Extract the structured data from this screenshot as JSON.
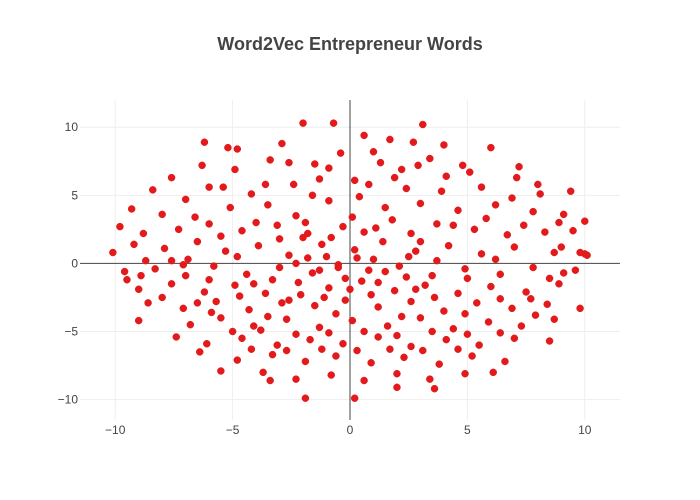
{
  "colors": {
    "marker": "#e31a1c",
    "zero_line": "#444444",
    "grid": "#eeeeee",
    "text": "#444444"
  },
  "chart_data": {
    "type": "scatter",
    "title": "Word2Vec Entrepreneur Words",
    "xlabel": "",
    "ylabel": "",
    "xlim": [
      -11.5,
      11.5
    ],
    "ylim": [
      -11.5,
      12
    ],
    "xticks": [
      -10,
      -5,
      0,
      5,
      10
    ],
    "yticks": [
      -10,
      -5,
      0,
      5,
      10
    ],
    "xtick_labels": [
      "−10",
      "−5",
      "0",
      "5",
      "10"
    ],
    "ytick_labels": [
      "−10",
      "−5",
      "0",
      "5",
      "10"
    ],
    "grid": true,
    "zero_lines": true,
    "legend": "none",
    "marker_color": "#e31a1c",
    "series": [
      {
        "points": [
          [
            -2.0,
            10.3
          ],
          [
            -0.7,
            10.3
          ],
          [
            3.1,
            10.2
          ],
          [
            1.7,
            9.1
          ],
          [
            0.6,
            9.4
          ],
          [
            -5.2,
            8.5
          ],
          [
            -6.2,
            8.9
          ],
          [
            -2.9,
            8.8
          ],
          [
            -4.8,
            8.4
          ],
          [
            6.0,
            8.5
          ],
          [
            -0.4,
            8.1
          ],
          [
            2.7,
            8.9
          ],
          [
            4.0,
            8.7
          ],
          [
            1.0,
            8.2
          ],
          [
            -1.5,
            7.3
          ],
          [
            -6.3,
            7.2
          ],
          [
            -3.4,
            7.6
          ],
          [
            7.2,
            7.1
          ],
          [
            3.4,
            7.7
          ],
          [
            4.8,
            7.2
          ],
          [
            -8.4,
            5.4
          ],
          [
            -7.6,
            6.3
          ],
          [
            -5.4,
            5.6
          ],
          [
            -4.2,
            5.1
          ],
          [
            -2.4,
            5.8
          ],
          [
            -1.3,
            6.2
          ],
          [
            1.9,
            6.3
          ],
          [
            2.4,
            5.5
          ],
          [
            4.1,
            6.4
          ],
          [
            5.6,
            5.6
          ],
          [
            7.1,
            6.3
          ],
          [
            8.1,
            5.1
          ],
          [
            9.4,
            5.3
          ],
          [
            -9.3,
            4.0
          ],
          [
            -8.0,
            3.6
          ],
          [
            -6.6,
            3.4
          ],
          [
            -5.1,
            4.1
          ],
          [
            -3.5,
            4.3
          ],
          [
            -2.3,
            3.5
          ],
          [
            -0.9,
            4.6
          ],
          [
            0.4,
            4.9
          ],
          [
            1.5,
            4.1
          ],
          [
            3.0,
            4.4
          ],
          [
            4.6,
            3.9
          ],
          [
            6.2,
            4.3
          ],
          [
            7.8,
            3.8
          ],
          [
            9.1,
            3.6
          ],
          [
            -9.8,
            2.7
          ],
          [
            -8.8,
            2.2
          ],
          [
            -7.3,
            2.5
          ],
          [
            -6.0,
            2.9
          ],
          [
            -4.6,
            2.4
          ],
          [
            -3.1,
            2.8
          ],
          [
            -1.8,
            2.2
          ],
          [
            -0.3,
            2.7
          ],
          [
            1.1,
            2.6
          ],
          [
            2.6,
            2.2
          ],
          [
            3.7,
            2.9
          ],
          [
            5.3,
            2.5
          ],
          [
            6.7,
            2.1
          ],
          [
            8.3,
            2.3
          ],
          [
            10.0,
            3.1
          ],
          [
            -10.1,
            0.8
          ],
          [
            -9.2,
            1.4
          ],
          [
            -7.9,
            1.1
          ],
          [
            -6.5,
            1.6
          ],
          [
            -5.3,
            0.9
          ],
          [
            -3.9,
            1.3
          ],
          [
            -2.6,
            0.6
          ],
          [
            -1.2,
            1.4
          ],
          [
            0.2,
            1.0
          ],
          [
            1.4,
            1.6
          ],
          [
            2.8,
            0.9
          ],
          [
            4.2,
            1.3
          ],
          [
            5.6,
            0.7
          ],
          [
            7.0,
            1.2
          ],
          [
            8.7,
            0.8
          ],
          [
            9.8,
            0.8
          ],
          [
            10.1,
            0.6
          ],
          [
            -9.6,
            -0.6
          ],
          [
            -8.3,
            -0.4
          ],
          [
            -7.0,
            -0.9
          ],
          [
            -5.8,
            -0.2
          ],
          [
            -4.4,
            -0.8
          ],
          [
            -3.0,
            -0.3
          ],
          [
            -1.6,
            -0.7
          ],
          [
            -0.5,
            -0.1
          ],
          [
            0.8,
            -0.5
          ],
          [
            2.1,
            -0.2
          ],
          [
            3.5,
            -0.9
          ],
          [
            4.9,
            -0.4
          ],
          [
            6.4,
            -0.8
          ],
          [
            7.8,
            -0.3
          ],
          [
            9.1,
            -0.7
          ],
          [
            -9.0,
            -1.9
          ],
          [
            -7.6,
            -1.5
          ],
          [
            -6.2,
            -2.1
          ],
          [
            -4.9,
            -1.6
          ],
          [
            -3.6,
            -2.2
          ],
          [
            -2.2,
            -1.4
          ],
          [
            -0.9,
            -1.8
          ],
          [
            0.5,
            -1.3
          ],
          [
            1.9,
            -2.0
          ],
          [
            3.2,
            -1.6
          ],
          [
            4.6,
            -2.2
          ],
          [
            6.0,
            -1.7
          ],
          [
            7.5,
            -2.1
          ],
          [
            8.9,
            -1.5
          ],
          [
            -8.6,
            -2.9
          ],
          [
            -7.1,
            -3.3
          ],
          [
            -5.7,
            -2.8
          ],
          [
            -4.3,
            -3.4
          ],
          [
            -2.9,
            -2.9
          ],
          [
            -1.5,
            -3.1
          ],
          [
            -0.2,
            -2.7
          ],
          [
            1.2,
            -3.2
          ],
          [
            2.6,
            -2.8
          ],
          [
            4.0,
            -3.5
          ],
          [
            5.4,
            -2.9
          ],
          [
            6.9,
            -3.3
          ],
          [
            8.4,
            -3.0
          ],
          [
            9.8,
            -3.3
          ],
          [
            -9.0,
            -4.2
          ],
          [
            -6.8,
            -4.5
          ],
          [
            -5.5,
            -4.0
          ],
          [
            -4.1,
            -4.6
          ],
          [
            -2.7,
            -4.1
          ],
          [
            -1.3,
            -4.7
          ],
          [
            0.1,
            -4.2
          ],
          [
            1.6,
            -4.6
          ],
          [
            3.0,
            -4.0
          ],
          [
            4.4,
            -4.8
          ],
          [
            5.9,
            -4.3
          ],
          [
            7.3,
            -4.6
          ],
          [
            8.7,
            -4.1
          ],
          [
            -7.4,
            -5.4
          ],
          [
            -6.1,
            -5.9
          ],
          [
            -4.6,
            -5.5
          ],
          [
            -3.1,
            -6.0
          ],
          [
            -1.7,
            -5.6
          ],
          [
            -0.3,
            -5.9
          ],
          [
            1.2,
            -5.4
          ],
          [
            2.6,
            -6.1
          ],
          [
            4.1,
            -5.6
          ],
          [
            5.5,
            -6.0
          ],
          [
            7.0,
            -5.5
          ],
          [
            8.5,
            -5.7
          ],
          [
            -6.4,
            -6.5
          ],
          [
            -4.8,
            -7.1
          ],
          [
            -3.3,
            -6.7
          ],
          [
            -1.9,
            -7.2
          ],
          [
            -0.6,
            -6.8
          ],
          [
            0.9,
            -7.3
          ],
          [
            2.3,
            -6.9
          ],
          [
            3.8,
            -7.4
          ],
          [
            5.2,
            -6.8
          ],
          [
            6.6,
            -7.2
          ],
          [
            -5.5,
            -7.9
          ],
          [
            -3.7,
            -8.0
          ],
          [
            -2.3,
            -8.5
          ],
          [
            -0.8,
            -8.2
          ],
          [
            0.6,
            -8.6
          ],
          [
            2.0,
            -8.1
          ],
          [
            3.4,
            -8.5
          ],
          [
            4.9,
            -8.1
          ],
          [
            6.1,
            -8.0
          ],
          [
            -3.4,
            -8.6
          ],
          [
            -1.9,
            -9.9
          ],
          [
            0.2,
            -9.9
          ],
          [
            2.0,
            -9.1
          ],
          [
            3.6,
            -9.2
          ],
          [
            -6.9,
            0.3
          ],
          [
            -8.7,
            0.2
          ],
          [
            -4.0,
            3.0
          ],
          [
            -2.0,
            1.9
          ],
          [
            -1.0,
            0.5
          ],
          [
            0.6,
            2.3
          ],
          [
            1.8,
            3.2
          ],
          [
            3.0,
            1.6
          ],
          [
            4.4,
            2.8
          ],
          [
            5.8,
            3.3
          ],
          [
            6.9,
            4.8
          ],
          [
            8.0,
            5.8
          ],
          [
            -3.6,
            5.8
          ],
          [
            -1.6,
            5.0
          ],
          [
            0.8,
            5.8
          ],
          [
            2.2,
            6.9
          ],
          [
            3.9,
            5.3
          ],
          [
            5.1,
            6.7
          ],
          [
            -2.6,
            7.4
          ],
          [
            -0.9,
            7.0
          ],
          [
            1.3,
            7.4
          ],
          [
            2.9,
            7.2
          ],
          [
            0.2,
            6.1
          ],
          [
            -4.9,
            6.9
          ],
          [
            -7.0,
            4.7
          ],
          [
            -6.0,
            5.6
          ],
          [
            8.9,
            3.0
          ],
          [
            9.5,
            2.4
          ],
          [
            7.4,
            2.8
          ],
          [
            6.2,
            0.3
          ],
          [
            5.0,
            -1.1
          ],
          [
            3.7,
            0.2
          ],
          [
            2.4,
            -1.0
          ],
          [
            1.0,
            0.3
          ],
          [
            -0.2,
            -1.1
          ],
          [
            -1.8,
            0.4
          ],
          [
            -3.3,
            -1.2
          ],
          [
            -4.8,
            0.5
          ],
          [
            -6.0,
            -1.2
          ],
          [
            -7.6,
            0.2
          ],
          [
            -8.9,
            -0.9
          ],
          [
            -5.9,
            -3.6
          ],
          [
            -4.7,
            -2.4
          ],
          [
            -3.5,
            -3.9
          ],
          [
            -2.1,
            -2.3
          ],
          [
            -0.6,
            -3.7
          ],
          [
            0.9,
            -2.3
          ],
          [
            2.2,
            -3.9
          ],
          [
            3.6,
            -2.5
          ],
          [
            4.9,
            -3.7
          ],
          [
            6.4,
            -2.6
          ],
          [
            7.9,
            -3.8
          ],
          [
            -5.0,
            -5.0
          ],
          [
            -3.8,
            -4.9
          ],
          [
            -2.3,
            -5.2
          ],
          [
            -0.9,
            -5.1
          ],
          [
            0.6,
            -5.0
          ],
          [
            2.0,
            -5.3
          ],
          [
            3.5,
            -5.0
          ],
          [
            5.0,
            -5.2
          ],
          [
            6.4,
            -5.1
          ],
          [
            -4.2,
            -6.3
          ],
          [
            -2.7,
            -6.4
          ],
          [
            -1.2,
            -6.3
          ],
          [
            0.3,
            -6.4
          ],
          [
            1.7,
            -6.3
          ],
          [
            3.1,
            -6.4
          ],
          [
            4.6,
            -6.3
          ],
          [
            -0.5,
            -0.3
          ],
          [
            0.3,
            0.4
          ],
          [
            -1.3,
            -0.5
          ],
          [
            1.5,
            -0.6
          ],
          [
            -2.3,
            0.0
          ],
          [
            2.5,
            0.5
          ],
          [
            -0.8,
            1.9
          ],
          [
            0.1,
            3.4
          ],
          [
            -1.9,
            3.0
          ],
          [
            -3.0,
            1.8
          ],
          [
            -4.1,
            -1.5
          ],
          [
            -2.6,
            -2.7
          ],
          [
            -1.1,
            -2.5
          ],
          [
            0.0,
            -1.9
          ],
          [
            1.2,
            -1.4
          ],
          [
            2.8,
            -1.9
          ],
          [
            -5.5,
            2.0
          ],
          [
            -7.1,
            -0.1
          ],
          [
            -6.5,
            -2.9
          ],
          [
            -8.0,
            -2.5
          ],
          [
            -9.5,
            -1.2
          ],
          [
            9.6,
            -0.5
          ],
          [
            10.0,
            0.7
          ],
          [
            9.0,
            1.2
          ],
          [
            8.5,
            -1.1
          ],
          [
            7.7,
            -2.6
          ]
        ]
      }
    ]
  }
}
